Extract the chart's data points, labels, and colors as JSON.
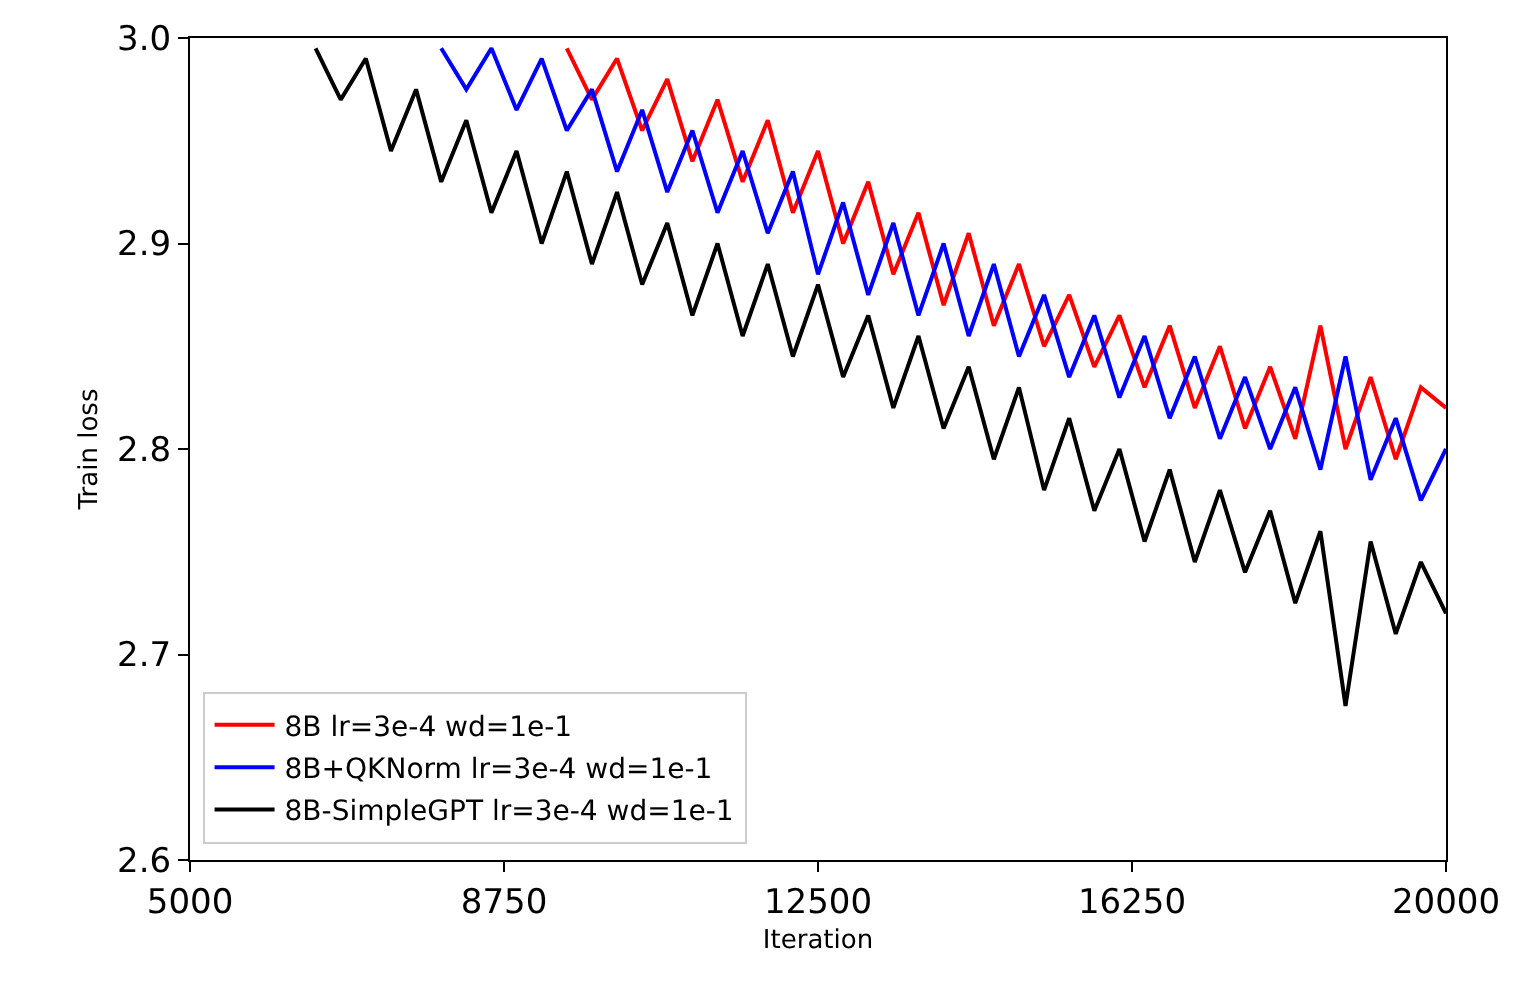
{
  "chart_data": {
    "type": "line",
    "xlabel": "Iteration",
    "ylabel": "Train loss",
    "xlim": [
      5000,
      20000
    ],
    "xticks": [
      5000,
      8750,
      12500,
      16250,
      20000
    ],
    "ylim": [
      2.6,
      3.0
    ],
    "yticks": [
      {
        "value": 2.6,
        "label": "2.6"
      },
      {
        "value": 2.7,
        "label": "2.7"
      },
      {
        "value": 2.8,
        "label": "2.8"
      },
      {
        "value": 2.9,
        "label": "2.9"
      },
      {
        "value": 3.0,
        "label": "3.0"
      }
    ],
    "legend": "bottom left",
    "marker": "none",
    "line_style": "solid",
    "series": [
      {
        "name": "8B lr=3e-4 wd=1e-1",
        "color": "#ff0000",
        "x": [
          9500,
          9800,
          10100,
          10400,
          10700,
          11000,
          11300,
          11600,
          11900,
          12200,
          12500,
          12800,
          13100,
          13400,
          13700,
          14000,
          14300,
          14600,
          14900,
          15200,
          15500,
          15800,
          16100,
          16400,
          16700,
          17000,
          17300,
          17600,
          17900,
          18200,
          18500,
          18800,
          19100,
          19400,
          19700,
          20000
        ],
        "values": [
          2.995,
          2.97,
          2.99,
          2.955,
          2.98,
          2.94,
          2.97,
          2.93,
          2.96,
          2.915,
          2.945,
          2.9,
          2.93,
          2.885,
          2.915,
          2.87,
          2.905,
          2.86,
          2.89,
          2.85,
          2.875,
          2.84,
          2.865,
          2.83,
          2.86,
          2.82,
          2.85,
          2.81,
          2.84,
          2.805,
          2.86,
          2.8,
          2.835,
          2.795,
          2.83,
          2.82
        ]
      },
      {
        "name": "8B+QKNorm lr=3e-4 wd=1e-1",
        "color": "#0000ff",
        "x": [
          8000,
          8300,
          8600,
          8900,
          9200,
          9500,
          9800,
          10100,
          10400,
          10700,
          11000,
          11300,
          11600,
          11900,
          12200,
          12500,
          12800,
          13100,
          13400,
          13700,
          14000,
          14300,
          14600,
          14900,
          15200,
          15500,
          15800,
          16100,
          16400,
          16700,
          17000,
          17300,
          17600,
          17900,
          18200,
          18500,
          18800,
          19100,
          19400,
          19700,
          20000
        ],
        "values": [
          2.995,
          2.975,
          2.995,
          2.965,
          2.99,
          2.955,
          2.975,
          2.935,
          2.965,
          2.925,
          2.955,
          2.915,
          2.945,
          2.905,
          2.935,
          2.885,
          2.92,
          2.875,
          2.91,
          2.865,
          2.9,
          2.855,
          2.89,
          2.845,
          2.875,
          2.835,
          2.865,
          2.825,
          2.855,
          2.815,
          2.845,
          2.805,
          2.835,
          2.8,
          2.83,
          2.79,
          2.845,
          2.785,
          2.815,
          2.775,
          2.8
        ]
      },
      {
        "name": "8B-SimpleGPT lr=3e-4 wd=1e-1",
        "color": "#000000",
        "x": [
          6500,
          6800,
          7100,
          7400,
          7700,
          8000,
          8300,
          8600,
          8900,
          9200,
          9500,
          9800,
          10100,
          10400,
          10700,
          11000,
          11300,
          11600,
          11900,
          12200,
          12500,
          12800,
          13100,
          13400,
          13700,
          14000,
          14300,
          14600,
          14900,
          15200,
          15500,
          15800,
          16100,
          16400,
          16700,
          17000,
          17300,
          17600,
          17900,
          18200,
          18500,
          18800,
          19100,
          19400,
          19700,
          20000
        ],
        "values": [
          2.995,
          2.97,
          2.99,
          2.945,
          2.975,
          2.93,
          2.96,
          2.915,
          2.945,
          2.9,
          2.935,
          2.89,
          2.925,
          2.88,
          2.91,
          2.865,
          2.9,
          2.855,
          2.89,
          2.845,
          2.88,
          2.835,
          2.865,
          2.82,
          2.855,
          2.81,
          2.84,
          2.795,
          2.83,
          2.78,
          2.815,
          2.77,
          2.8,
          2.755,
          2.79,
          2.745,
          2.78,
          2.74,
          2.77,
          2.725,
          2.76,
          2.675,
          2.755,
          2.71,
          2.745,
          2.72
        ]
      }
    ]
  }
}
